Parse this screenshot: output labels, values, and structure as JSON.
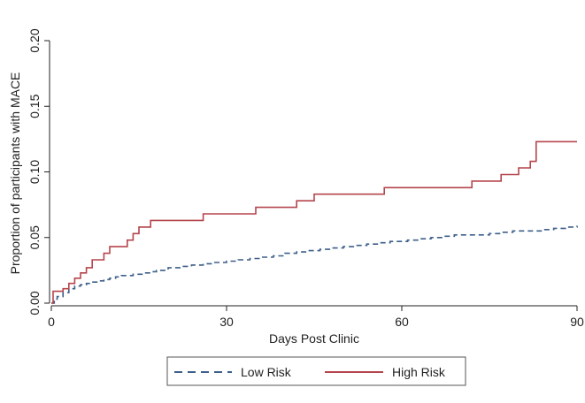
{
  "chart_data": {
    "type": "line",
    "title": "",
    "xlabel": "Days Post Clinic",
    "ylabel": "Proportion of participants with MACE",
    "xlim": [
      0,
      90
    ],
    "ylim": [
      0,
      0.2
    ],
    "x_ticks": [
      0,
      30,
      60,
      90
    ],
    "x_tick_labels": [
      "0",
      "30",
      "60",
      "90"
    ],
    "y_ticks": [
      0,
      0.05,
      0.1,
      0.15,
      0.2
    ],
    "y_tick_labels": [
      "0.00",
      "0.05",
      "0.10",
      "0.15",
      "0.20"
    ],
    "grid": false,
    "legend_position": "bottom",
    "series": [
      {
        "name": "Low Risk",
        "color": "#3d5f8a",
        "dash": "dashed",
        "step": true,
        "points": [
          [
            0,
            0
          ],
          [
            0.5,
            0.003
          ],
          [
            1,
            0.005
          ],
          [
            2,
            0.008
          ],
          [
            3,
            0.011
          ],
          [
            4,
            0.013
          ],
          [
            5,
            0.014
          ],
          [
            6,
            0.015
          ],
          [
            7,
            0.016
          ],
          [
            8,
            0.017
          ],
          [
            9,
            0.018
          ],
          [
            10,
            0.019
          ],
          [
            11,
            0.02
          ],
          [
            12,
            0.021
          ],
          [
            14,
            0.022
          ],
          [
            16,
            0.023
          ],
          [
            17,
            0.024
          ],
          [
            18,
            0.025
          ],
          [
            20,
            0.027
          ],
          [
            22,
            0.028
          ],
          [
            24,
            0.029
          ],
          [
            26,
            0.03
          ],
          [
            28,
            0.031
          ],
          [
            30,
            0.032
          ],
          [
            32,
            0.033
          ],
          [
            34,
            0.034
          ],
          [
            36,
            0.035
          ],
          [
            38,
            0.036
          ],
          [
            40,
            0.038
          ],
          [
            42,
            0.039
          ],
          [
            44,
            0.04
          ],
          [
            46,
            0.041
          ],
          [
            48,
            0.042
          ],
          [
            50,
            0.043
          ],
          [
            52,
            0.044
          ],
          [
            54,
            0.045
          ],
          [
            56,
            0.046
          ],
          [
            58,
            0.047
          ],
          [
            61,
            0.048
          ],
          [
            63,
            0.049
          ],
          [
            65,
            0.05
          ],
          [
            67,
            0.051
          ],
          [
            69,
            0.052
          ],
          [
            75,
            0.053
          ],
          [
            77,
            0.054
          ],
          [
            79,
            0.055
          ],
          [
            84,
            0.056
          ],
          [
            86,
            0.057
          ],
          [
            88,
            0.058
          ],
          [
            90,
            0.059
          ]
        ]
      },
      {
        "name": "High Risk",
        "color": "#b5454c",
        "dash": "solid",
        "step": true,
        "points": [
          [
            0,
            0
          ],
          [
            0.3,
            0.009
          ],
          [
            2,
            0.011
          ],
          [
            3,
            0.015
          ],
          [
            4,
            0.019
          ],
          [
            5,
            0.023
          ],
          [
            6,
            0.027
          ],
          [
            7,
            0.033
          ],
          [
            9,
            0.038
          ],
          [
            10,
            0.043
          ],
          [
            13,
            0.048
          ],
          [
            14,
            0.053
          ],
          [
            15,
            0.058
          ],
          [
            17,
            0.063
          ],
          [
            26,
            0.068
          ],
          [
            35,
            0.073
          ],
          [
            42,
            0.078
          ],
          [
            45,
            0.083
          ],
          [
            57,
            0.088
          ],
          [
            72,
            0.093
          ],
          [
            77,
            0.098
          ],
          [
            80,
            0.103
          ],
          [
            82,
            0.108
          ],
          [
            83,
            0.123
          ],
          [
            90,
            0.123
          ]
        ]
      }
    ]
  }
}
